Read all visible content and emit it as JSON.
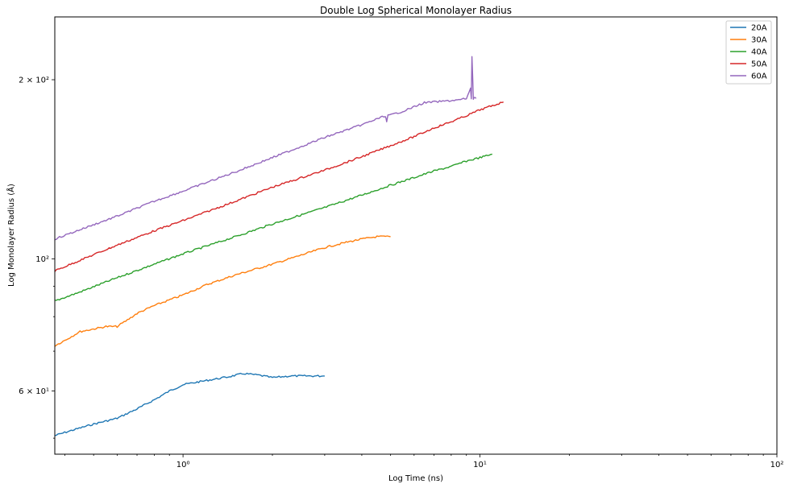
{
  "chart_data": {
    "type": "line",
    "title": "Double Log Spherical Monolayer Radius",
    "xlabel": "Log Time (ns)",
    "ylabel": "Log Monolayer Radius (Å)",
    "x_scale": "log",
    "y_scale": "log",
    "xlim": [
      0.37,
      100
    ],
    "ylim": [
      47,
      255
    ],
    "x_ticks": [
      {
        "value": 1,
        "label": "10⁰"
      },
      {
        "value": 10,
        "label": "10¹"
      },
      {
        "value": 100,
        "label": "10²"
      }
    ],
    "y_ticks": [
      {
        "value": 60,
        "label": "6 × 10¹"
      },
      {
        "value": 100,
        "label": "10²"
      },
      {
        "value": 200,
        "label": "2 × 10²"
      }
    ],
    "grid": false,
    "legend_position": "top-right",
    "series": [
      {
        "name": "20A",
        "color": "#1f77b4",
        "x": [
          0.37,
          0.42,
          0.5,
          0.6,
          0.7,
          0.8,
          0.9,
          1.0,
          1.2,
          1.4,
          1.6,
          1.8,
          2.0,
          2.3,
          2.6,
          3.0
        ],
        "y": [
          50.5,
          51.5,
          52.8,
          54.0,
          56.0,
          58.0,
          60.0,
          61.5,
          62.5,
          63.3,
          64.2,
          63.8,
          63.2,
          63.6,
          63.6,
          63.6
        ]
      },
      {
        "name": "30A",
        "color": "#ff7f0e",
        "x": [
          0.37,
          0.4,
          0.45,
          0.55,
          0.6,
          0.65,
          0.7,
          0.8,
          1.0,
          1.2,
          1.5,
          2.0,
          2.5,
          3.0,
          3.5,
          4.0,
          4.5,
          5.0
        ],
        "y": [
          71.5,
          73.0,
          75.5,
          77.0,
          77.0,
          79.0,
          81.0,
          83.5,
          87.0,
          90.5,
          94.0,
          98.0,
          101.5,
          104.5,
          106.5,
          108.0,
          109.0,
          109.0
        ]
      },
      {
        "name": "40A",
        "color": "#2ca02c",
        "x": [
          0.37,
          0.45,
          0.6,
          0.8,
          1.0,
          1.5,
          2.0,
          3.0,
          4.0,
          5.0,
          6.0,
          7.0,
          8.0,
          9.0,
          10.0,
          11.0
        ],
        "y": [
          85.0,
          88.0,
          93.0,
          98.0,
          102.0,
          109.0,
          114.5,
          122.0,
          128.0,
          133.0,
          137.0,
          140.5,
          143.0,
          146.0,
          148.0,
          150.0
        ]
      },
      {
        "name": "50A",
        "color": "#d62728",
        "x": [
          0.37,
          0.45,
          0.6,
          0.8,
          1.0,
          1.5,
          2.0,
          3.0,
          4.0,
          5.0,
          6.0,
          7.0,
          8.0,
          9.0,
          10.0,
          12.0
        ],
        "y": [
          95.5,
          99.5,
          105.5,
          111.5,
          116.0,
          125.0,
          132.0,
          141.0,
          148.5,
          155.0,
          160.5,
          166.0,
          170.0,
          174.0,
          178.0,
          183.5
        ]
      },
      {
        "name": "60A",
        "color": "#9467bd",
        "x": [
          0.37,
          0.45,
          0.6,
          0.8,
          1.0,
          1.5,
          2.0,
          3.0,
          4.0,
          4.8,
          4.85,
          4.9,
          5.5,
          6.5,
          7.5,
          8.5,
          9.0,
          9.3,
          9.35,
          9.4,
          9.5,
          9.6,
          9.7
        ],
        "y": [
          108.0,
          112.0,
          118.0,
          125.0,
          130.0,
          140.0,
          148.0,
          160.0,
          168.0,
          174.0,
          170.0,
          174.0,
          177.0,
          183.0,
          184.0,
          185.0,
          186.0,
          193.0,
          186.0,
          219.0,
          186.0,
          187.0,
          186.0
        ]
      }
    ]
  }
}
